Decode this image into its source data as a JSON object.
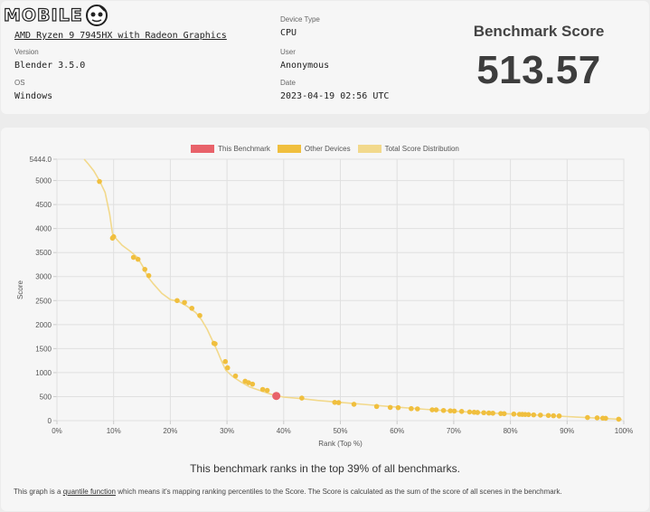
{
  "watermark": {
    "text": "MOBILE"
  },
  "info": {
    "device_name": "AMD Ryzen 9 7945HX with Radeon Graphics",
    "version_label": "Version",
    "version_value": "Blender 3.5.0",
    "os_label": "OS",
    "os_value": "Windows",
    "device_type_label": "Device Type",
    "device_type_value": "CPU",
    "user_label": "User",
    "user_value": "Anonymous",
    "date_label": "Date",
    "date_value": "2023-04-19 02:56 UTC"
  },
  "score": {
    "title": "Benchmark Score",
    "value": "513.57"
  },
  "legend": [
    {
      "label": "This Benchmark",
      "color": "#e8626a"
    },
    {
      "label": "Other Devices",
      "color": "#f0bf3e"
    },
    {
      "label": "Total Score Distribution",
      "color": "#f2d98c"
    }
  ],
  "summary": "This benchmark ranks in the top 39% of all benchmarks.",
  "footnote": {
    "before": "This graph is a ",
    "link": "quantile function",
    "after": " which means it's mapping ranking percentiles to the Score. The Score is calculated as the sum of the score of all scenes in the benchmark."
  },
  "chart_data": {
    "type": "scatter",
    "xlabel": "Rank (Top %)",
    "ylabel": "Score",
    "xlim": [
      0,
      100
    ],
    "ylim": [
      0,
      5444
    ],
    "x_ticks": [
      "0%",
      "10%",
      "20%",
      "30%",
      "40%",
      "50%",
      "60%",
      "70%",
      "80%",
      "90%",
      "100%"
    ],
    "y_ticks": [
      "0",
      "500",
      "1000",
      "1500",
      "2000",
      "2500",
      "3000",
      "3500",
      "4000",
      "4500",
      "5000",
      "5444.0"
    ],
    "y_tick_values": [
      0,
      500,
      1000,
      1500,
      2000,
      2500,
      3000,
      3500,
      4000,
      4500,
      5000,
      5444
    ],
    "grid": true,
    "legend_position": "top-center",
    "distribution_curve": [
      [
        4.8,
        5444
      ],
      [
        5.5,
        5350
      ],
      [
        6.5,
        5200
      ],
      [
        7.5,
        5000
      ],
      [
        8.5,
        4750
      ],
      [
        9.3,
        4300
      ],
      [
        9.8,
        3900
      ],
      [
        10.5,
        3780
      ],
      [
        11.5,
        3650
      ],
      [
        13,
        3520
      ],
      [
        14.2,
        3400
      ],
      [
        15.2,
        3200
      ],
      [
        16,
        3000
      ],
      [
        17,
        2850
      ],
      [
        18.5,
        2650
      ],
      [
        20,
        2520
      ],
      [
        21.5,
        2480
      ],
      [
        23,
        2380
      ],
      [
        24.5,
        2250
      ],
      [
        25.5,
        2100
      ],
      [
        26.5,
        1900
      ],
      [
        27.5,
        1650
      ],
      [
        28.3,
        1450
      ],
      [
        29,
        1250
      ],
      [
        29.8,
        1050
      ],
      [
        31,
        920
      ],
      [
        32.5,
        800
      ],
      [
        34,
        700
      ],
      [
        36,
        620
      ],
      [
        38,
        540
      ],
      [
        40,
        490
      ],
      [
        43,
        460
      ],
      [
        46,
        420
      ],
      [
        50,
        380
      ],
      [
        55,
        330
      ],
      [
        60,
        280
      ],
      [
        65,
        235
      ],
      [
        70,
        195
      ],
      [
        75,
        165
      ],
      [
        80,
        140
      ],
      [
        85,
        115
      ],
      [
        90,
        85
      ],
      [
        95,
        55
      ],
      [
        98,
        35
      ],
      [
        99.7,
        25
      ]
    ],
    "series": [
      {
        "name": "Other Devices",
        "color": "#f0bf3e",
        "points": [
          [
            7.5,
            4980
          ],
          [
            9.8,
            3800
          ],
          [
            10,
            3830
          ],
          [
            13.5,
            3400
          ],
          [
            14.3,
            3360
          ],
          [
            15.5,
            3150
          ],
          [
            16.2,
            3020
          ],
          [
            21.2,
            2500
          ],
          [
            22.5,
            2460
          ],
          [
            23.8,
            2340
          ],
          [
            25.2,
            2190
          ],
          [
            27.7,
            1610
          ],
          [
            27.9,
            1600
          ],
          [
            29.7,
            1230
          ],
          [
            30.1,
            1100
          ],
          [
            31.5,
            930
          ],
          [
            33.2,
            820
          ],
          [
            33.8,
            790
          ],
          [
            34.5,
            760
          ],
          [
            36.3,
            650
          ],
          [
            37.1,
            630
          ],
          [
            43.2,
            470
          ],
          [
            49,
            380
          ],
          [
            49.7,
            375
          ],
          [
            52.4,
            340
          ],
          [
            56.4,
            295
          ],
          [
            58.8,
            275
          ],
          [
            60.2,
            270
          ],
          [
            62.5,
            250
          ],
          [
            63.6,
            245
          ],
          [
            66.2,
            225
          ],
          [
            66.9,
            225
          ],
          [
            68.2,
            212
          ],
          [
            69.4,
            205
          ],
          [
            70.1,
            200
          ],
          [
            71.4,
            192
          ],
          [
            72.8,
            180
          ],
          [
            73.6,
            175
          ],
          [
            74.2,
            170
          ],
          [
            75.3,
            165
          ],
          [
            76.2,
            158
          ],
          [
            76.9,
            155
          ],
          [
            78.3,
            148
          ],
          [
            78.9,
            145
          ],
          [
            80.6,
            137
          ],
          [
            81.6,
            132
          ],
          [
            82.1,
            130
          ],
          [
            82.6,
            128
          ],
          [
            83.2,
            126
          ],
          [
            84.1,
            120
          ],
          [
            85.3,
            115
          ],
          [
            86.7,
            108
          ],
          [
            87.6,
            102
          ],
          [
            88.6,
            97
          ],
          [
            93.6,
            65
          ],
          [
            95.3,
            58
          ],
          [
            96.3,
            52
          ],
          [
            96.8,
            48
          ],
          [
            99.1,
            30
          ]
        ]
      },
      {
        "name": "This Benchmark",
        "color": "#e8626a",
        "points": [
          [
            38.7,
            513.57
          ]
        ]
      }
    ]
  }
}
